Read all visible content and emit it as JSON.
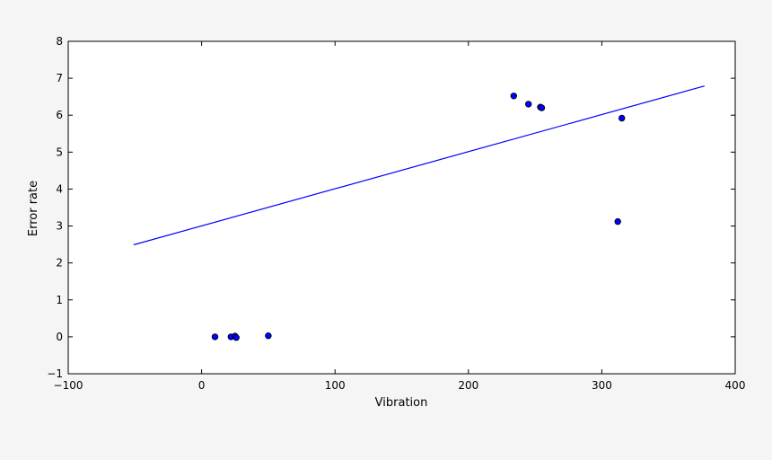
{
  "chart_data": {
    "type": "scatter",
    "xlabel": "Vibration",
    "ylabel": "Error rate",
    "xlim": [
      -100,
      400
    ],
    "ylim": [
      -1,
      8
    ],
    "xticks": [
      -100,
      0,
      100,
      200,
      300,
      400
    ],
    "yticks": [
      -1,
      0,
      1,
      2,
      3,
      4,
      5,
      6,
      7,
      8
    ],
    "xtick_labels": [
      "−100",
      "0",
      "100",
      "200",
      "300",
      "400"
    ],
    "ytick_labels": [
      "−1",
      "0",
      "1",
      "2",
      "3",
      "4",
      "5",
      "6",
      "7",
      "8"
    ],
    "grid": false,
    "series": [
      {
        "kind": "scatter",
        "color": "#0000ff",
        "points": [
          {
            "x": 10,
            "y": 0.0
          },
          {
            "x": 22,
            "y": 0.0
          },
          {
            "x": 25,
            "y": 0.02
          },
          {
            "x": 26,
            "y": -0.02
          },
          {
            "x": 50,
            "y": 0.03
          },
          {
            "x": 234,
            "y": 6.52
          },
          {
            "x": 245,
            "y": 6.3
          },
          {
            "x": 254,
            "y": 6.22
          },
          {
            "x": 255,
            "y": 6.2
          },
          {
            "x": 312,
            "y": 3.12
          },
          {
            "x": 315,
            "y": 5.92
          }
        ]
      },
      {
        "kind": "line",
        "color": "#0000ff",
        "points": [
          {
            "x": -51,
            "y": 2.49
          },
          {
            "x": 377,
            "y": 6.79
          }
        ]
      }
    ]
  }
}
